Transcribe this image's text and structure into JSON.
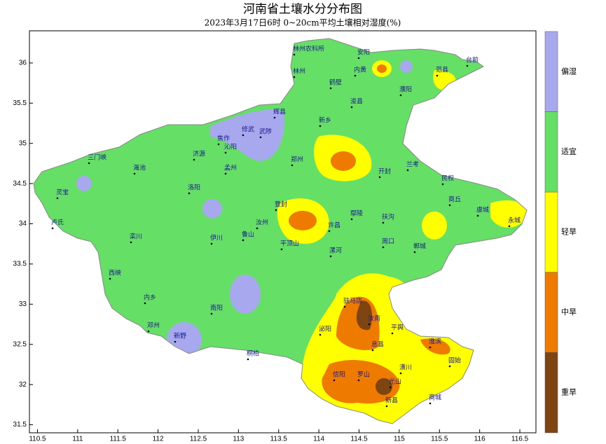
{
  "title": "河南省土壤水分分布图",
  "subtitle": "2023年3月17日6时 0~20cm平均土壤相对湿度(%)",
  "map": {
    "xlim": [
      110.4,
      116.7
    ],
    "ylim": [
      31.4,
      36.4
    ],
    "xticks": [
      110.5,
      111,
      111.5,
      112,
      112.5,
      113,
      113.5,
      114,
      114.5,
      115,
      115.5,
      116,
      116.5
    ],
    "yticks": [
      31.5,
      32,
      32.5,
      33,
      33.5,
      34,
      34.5,
      35,
      35.5,
      36
    ]
  },
  "legend": [
    {
      "label": "偏湿",
      "color": "#a8a8ee"
    },
    {
      "label": "适宜",
      "color": "#66df66"
    },
    {
      "label": "轻旱",
      "color": "#ffff00"
    },
    {
      "label": "中旱",
      "color": "#ee7a00"
    },
    {
      "label": "重旱",
      "color": "#7e4412"
    }
  ],
  "stations": [
    "林州农科所",
    "安阳",
    "台前",
    "范县",
    "林州",
    "内黄",
    "鹤壁",
    "濮阳",
    "浚县",
    "新乡",
    "辉县",
    "武陟",
    "修武",
    "焦作",
    "沁阳",
    "济源",
    "孟州",
    "郑州",
    "开封",
    "兰考",
    "民权",
    "商丘",
    "虞城",
    "永城",
    "灵宝",
    "三门峡",
    "渑池",
    "洛阳",
    "伊川",
    "汝州",
    "登封",
    "许昌",
    "鄢陵",
    "扶沟",
    "周口",
    "郸城",
    "平顶山",
    "鲁山",
    "漯河",
    "驻马店",
    "卢氏",
    "栾川",
    "西峡",
    "内乡",
    "南阳",
    "邓州",
    "新野",
    "桐柏",
    "泌阳",
    "汝南",
    "平舆",
    "信阳",
    "罗山",
    "光山",
    "潢川",
    "固始",
    "商城",
    "新县",
    "息县",
    "淮滨"
  ]
}
